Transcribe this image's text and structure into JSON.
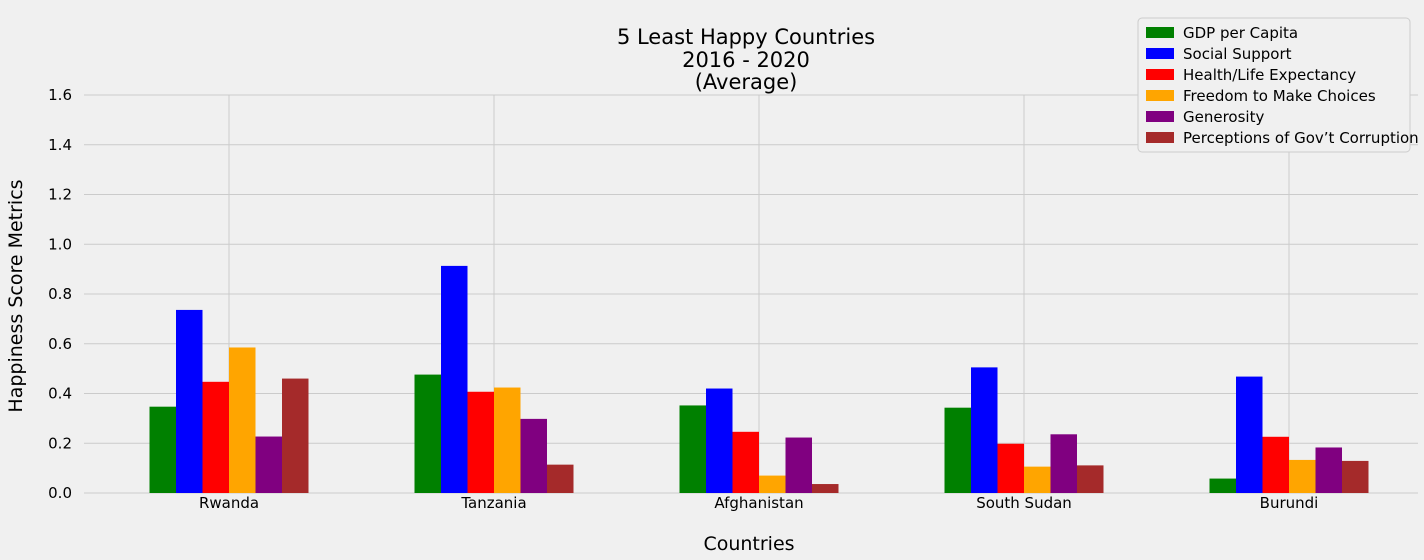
{
  "chart_data": {
    "type": "bar",
    "title_lines": [
      "5 Least Happy Countries",
      "2016 - 2020",
      "(Average)"
    ],
    "xlabel": "Countries",
    "ylabel": "Happiness Score Metrics",
    "categories": [
      "Rwanda",
      "Tanzania",
      "Afghanistan",
      "South Sudan",
      "Burundi"
    ],
    "ylim": [
      0,
      1.6
    ],
    "yticks": [
      0.0,
      0.2,
      0.4,
      0.6,
      0.8,
      1.0,
      1.2,
      1.4,
      1.6
    ],
    "ytick_labels": [
      "0.0",
      "0.2",
      "0.4",
      "0.6",
      "0.8",
      "1.0",
      "1.2",
      "1.4",
      "1.6"
    ],
    "grid": true,
    "legend_position": "top-right",
    "series": [
      {
        "name": "GDP per Capita",
        "color": "#008000",
        "values": [
          0.347,
          0.476,
          0.352,
          0.343,
          0.058
        ]
      },
      {
        "name": "Social Support",
        "color": "#0000ff",
        "values": [
          0.736,
          0.913,
          0.42,
          0.505,
          0.468
        ]
      },
      {
        "name": "Health/Life Expectancy",
        "color": "#ff0000",
        "values": [
          0.447,
          0.407,
          0.246,
          0.198,
          0.226
        ]
      },
      {
        "name": "Freedom to Make Choices",
        "color": "#ffa500",
        "values": [
          0.585,
          0.424,
          0.07,
          0.106,
          0.133
        ]
      },
      {
        "name": "Generosity",
        "color": "#800080",
        "values": [
          0.227,
          0.298,
          0.223,
          0.236,
          0.183
        ]
      },
      {
        "name": "Perceptions of Gov’t Corruption",
        "color": "#a52a2a",
        "values": [
          0.46,
          0.114,
          0.036,
          0.111,
          0.129
        ]
      }
    ]
  }
}
